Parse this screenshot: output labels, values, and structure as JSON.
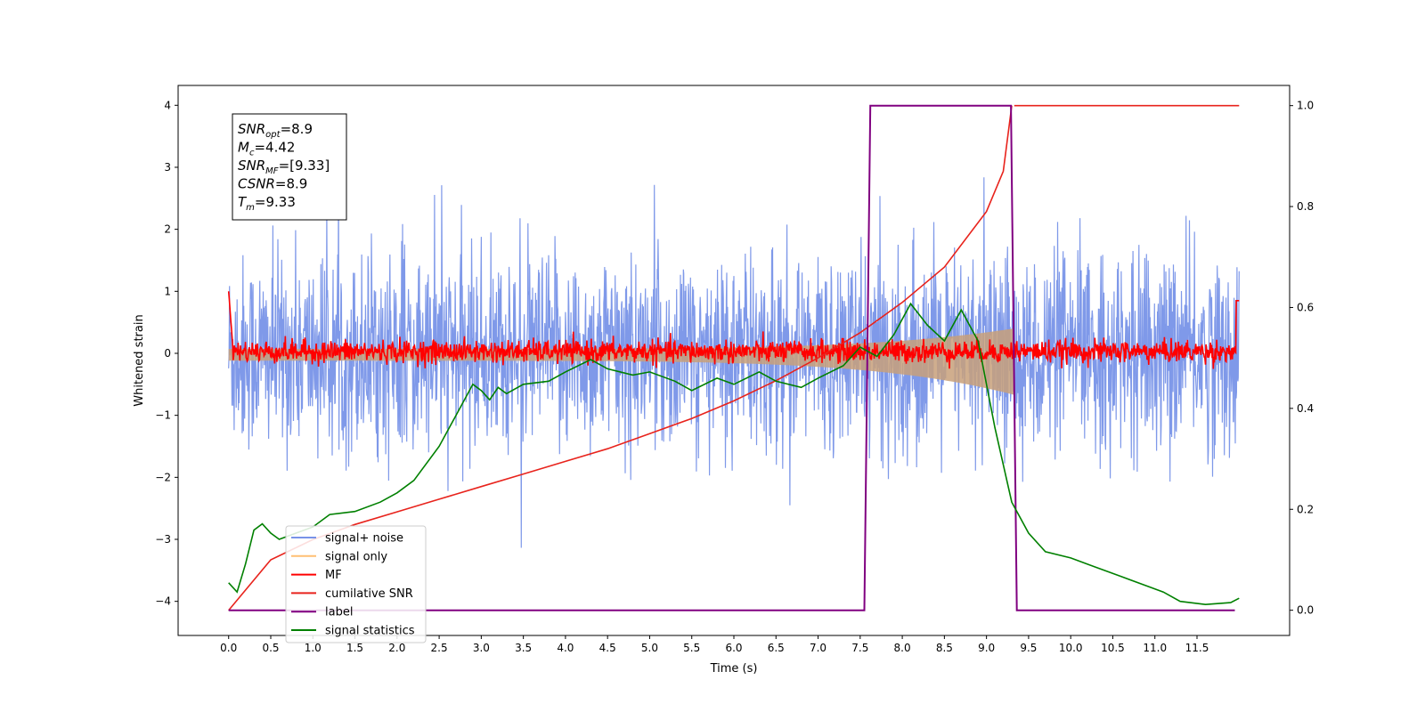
{
  "chart_data": {
    "type": "line",
    "xlabel": "Time (s)",
    "ylabel": "Whitened strain",
    "xlim": [
      -0.6,
      12.6
    ],
    "ylim": [
      -4.55,
      4.32
    ],
    "y2lim": [
      -0.05,
      1.04
    ],
    "x_ticks": [
      "0.0",
      "0.5",
      "1.0",
      "1.5",
      "2.0",
      "2.5",
      "3.0",
      "3.5",
      "4.0",
      "4.5",
      "5.0",
      "5.5",
      "6.0",
      "6.5",
      "7.0",
      "7.5",
      "8.0",
      "8.5",
      "9.0",
      "9.5",
      "10.0",
      "10.5",
      "11.0",
      "11.5"
    ],
    "y_ticks": [
      "4",
      "3",
      "2",
      "1",
      "0",
      "−1",
      "−2",
      "−3",
      "−4"
    ],
    "y2_ticks": [
      "1.0",
      "0.8",
      "0.6",
      "0.4",
      "0.2",
      "0.0"
    ],
    "grid": false,
    "legend_position": "lower-left",
    "annotation_box": {
      "lines": [
        {
          "symbol": "SNR",
          "subscript": "opt",
          "value": "=8.9"
        },
        {
          "symbol": "M",
          "subscript": "c",
          "value": "=4.42"
        },
        {
          "symbol": "SNR",
          "subscript": "MF",
          "value": "=[9.33]"
        },
        {
          "symbol": "CSNR",
          "subscript": "",
          "value": "=8.9"
        },
        {
          "symbol": "T",
          "subscript": "m",
          "value": "=9.33"
        }
      ]
    },
    "series": [
      {
        "name": "signal+ noise",
        "color": "#7893e8",
        "axis": "left",
        "kind": "noise",
        "spread": 0.78,
        "center": 0.0
      },
      {
        "name": "signal only",
        "color": "#ffbf73",
        "axis": "left",
        "kind": "chirp",
        "fill": "#c8a07a",
        "start": 0.0,
        "end": 9.33
      },
      {
        "name": "MF",
        "color": "#ff0000",
        "axis": "left",
        "kind": "noise",
        "spread": 0.09,
        "center": 0.03
      },
      {
        "name": "cumilative SNR",
        "color": "#e8231c",
        "axis": "right",
        "x": [
          0.0,
          0.5,
          1.0,
          1.5,
          2.0,
          2.5,
          3.0,
          3.5,
          4.0,
          4.5,
          5.0,
          5.5,
          6.0,
          6.5,
          7.0,
          7.5,
          8.0,
          8.5,
          9.0,
          9.2,
          9.3
        ],
        "y": [
          0.0,
          0.1,
          0.14,
          0.17,
          0.195,
          0.22,
          0.245,
          0.27,
          0.295,
          0.32,
          0.35,
          0.38,
          0.415,
          0.455,
          0.5,
          0.55,
          0.61,
          0.68,
          0.79,
          0.87,
          1.0
        ],
        "after": [
          [
            9.33,
            1.0
          ],
          [
            12.0,
            1.0
          ]
        ]
      },
      {
        "name": "label",
        "color": "#800080",
        "axis": "right",
        "x": [
          0.0,
          7.55,
          7.62,
          9.29,
          9.36,
          11.95
        ],
        "y": [
          0.0,
          0.0,
          1.0,
          1.0,
          0.0,
          0.0
        ]
      },
      {
        "name": "signal statistics",
        "color": "#008000",
        "axis": "left",
        "x": [
          0.0,
          0.1,
          0.2,
          0.3,
          0.4,
          0.5,
          0.6,
          0.8,
          1.0,
          1.2,
          1.5,
          1.8,
          2.0,
          2.2,
          2.5,
          2.7,
          2.9,
          3.0,
          3.1,
          3.2,
          3.3,
          3.5,
          3.8,
          4.0,
          4.3,
          4.5,
          4.8,
          5.0,
          5.3,
          5.5,
          5.8,
          6.0,
          6.3,
          6.5,
          6.8,
          7.0,
          7.3,
          7.5,
          7.7,
          7.9,
          8.1,
          8.3,
          8.5,
          8.7,
          8.9,
          9.1,
          9.3,
          9.5,
          9.7,
          10.0,
          10.3,
          10.6,
          10.9,
          11.1,
          11.3,
          11.6,
          11.9,
          12.0
        ],
        "y": [
          -3.7,
          -3.85,
          -3.4,
          -2.85,
          -2.75,
          -2.9,
          -3.0,
          -2.9,
          -2.8,
          -2.6,
          -2.55,
          -2.4,
          -2.25,
          -2.05,
          -1.5,
          -1.0,
          -0.5,
          -0.6,
          -0.75,
          -0.55,
          -0.65,
          -0.5,
          -0.45,
          -0.3,
          -0.1,
          -0.25,
          -0.35,
          -0.3,
          -0.45,
          -0.6,
          -0.4,
          -0.5,
          -0.3,
          -0.45,
          -0.55,
          -0.4,
          -0.2,
          0.1,
          -0.05,
          0.3,
          0.8,
          0.45,
          0.2,
          0.7,
          0.2,
          -1.2,
          -2.4,
          -2.9,
          -3.2,
          -3.3,
          -3.45,
          -3.6,
          -3.75,
          -3.85,
          -4.0,
          -4.05,
          -4.02,
          -3.95
        ]
      }
    ]
  }
}
